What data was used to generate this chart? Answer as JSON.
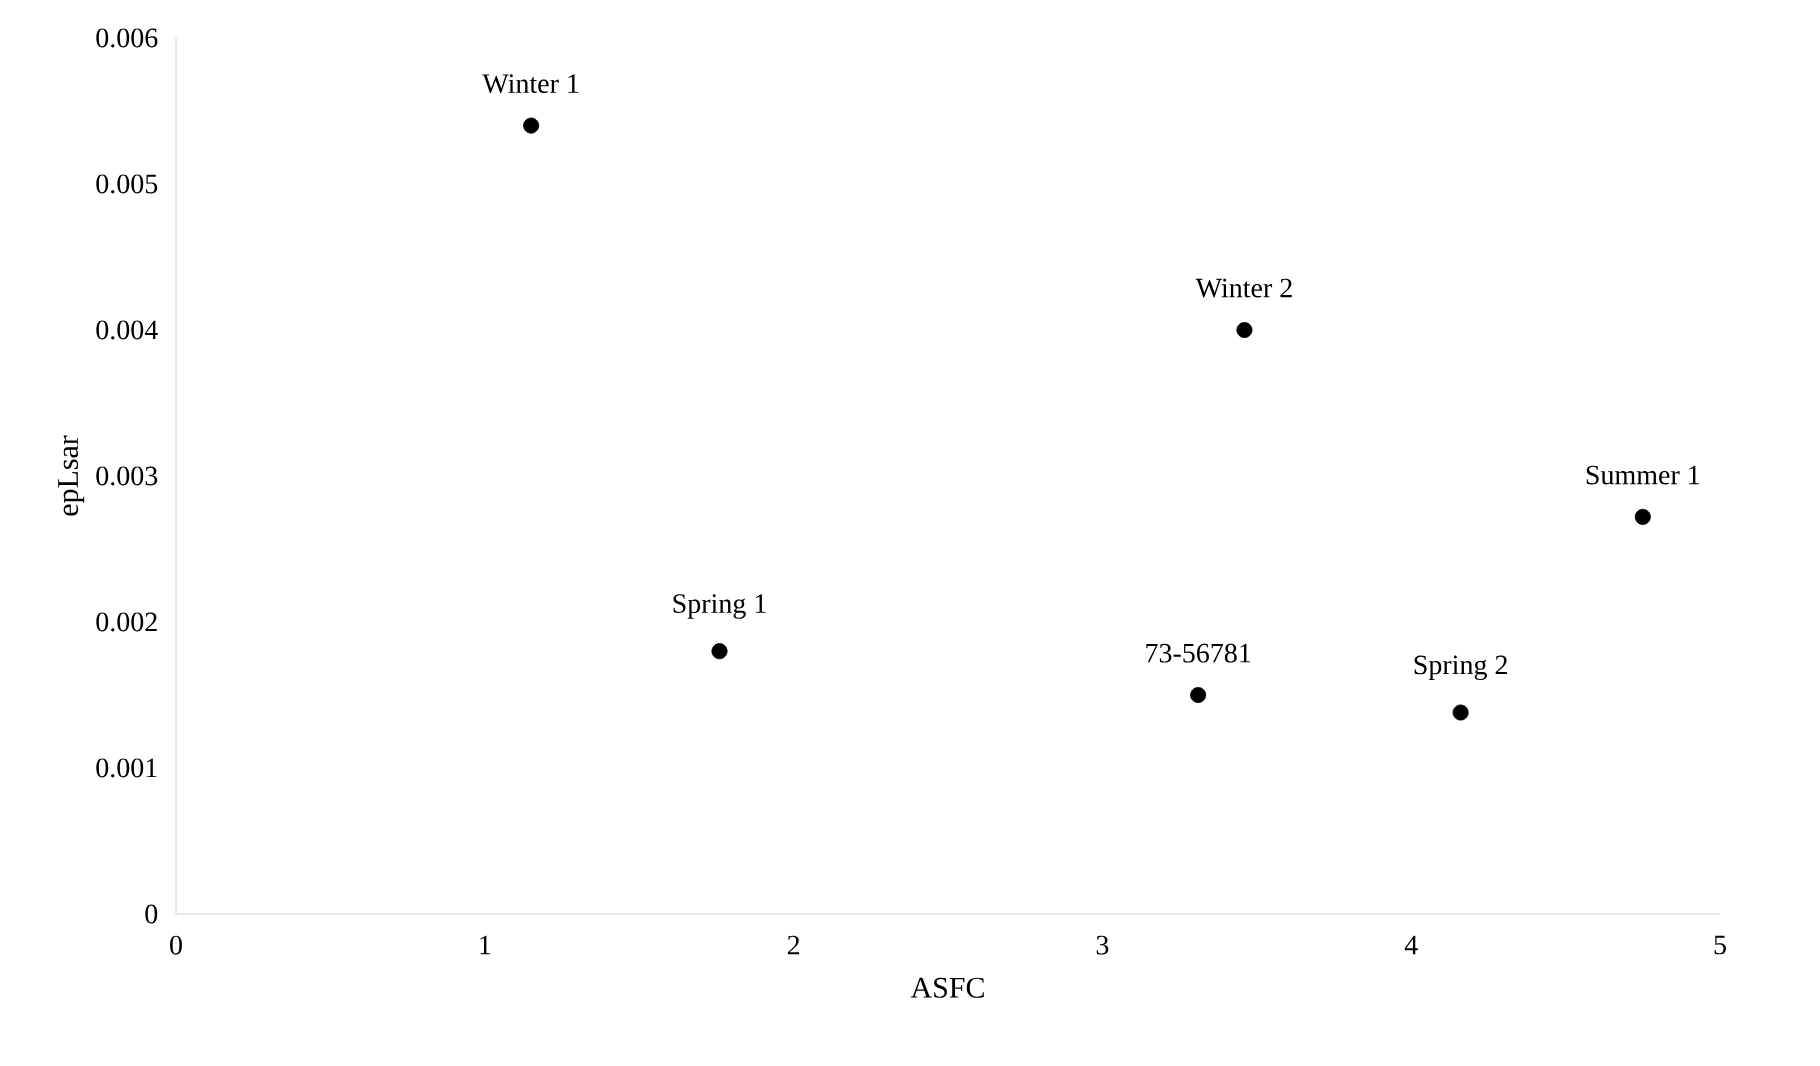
{
  "chart_data": {
    "type": "scatter",
    "xlabel": "ASFC",
    "ylabel": "epLsar",
    "x": [
      1.15,
      1.76,
      3.46,
      3.31,
      4.16,
      4.75
    ],
    "values": [
      0.0054,
      0.0018,
      0.004,
      0.0015,
      0.00138,
      0.00272
    ],
    "color": "#000000",
    "marker": "circle",
    "grid": false,
    "xlim": [
      0,
      5
    ],
    "xticks": [
      0,
      1,
      2,
      3,
      4,
      5
    ],
    "ylim": [
      0,
      0.006
    ],
    "yticks": [
      {
        "value": 0,
        "label": "0"
      },
      {
        "value": 0.001,
        "label": "0.001"
      },
      {
        "value": 0.002,
        "label": "0.002"
      },
      {
        "value": 0.003,
        "label": "0.003"
      },
      {
        "value": 0.004,
        "label": "0.004"
      },
      {
        "value": 0.005,
        "label": "0.005"
      },
      {
        "value": 0.006,
        "label": "0.006"
      }
    ],
    "annotations": [
      {
        "text": "Winter 1",
        "x": 1.15,
        "y": 0.0054
      },
      {
        "text": "Spring 1",
        "x": 1.76,
        "y": 0.0018
      },
      {
        "text": "Winter 2",
        "x": 3.46,
        "y": 0.004
      },
      {
        "text": "73-56781",
        "x": 3.31,
        "y": 0.0015
      },
      {
        "text": "Spring 2",
        "x": 4.16,
        "y": 0.00138
      },
      {
        "text": "Summer 1",
        "x": 4.75,
        "y": 0.00272
      }
    ]
  }
}
